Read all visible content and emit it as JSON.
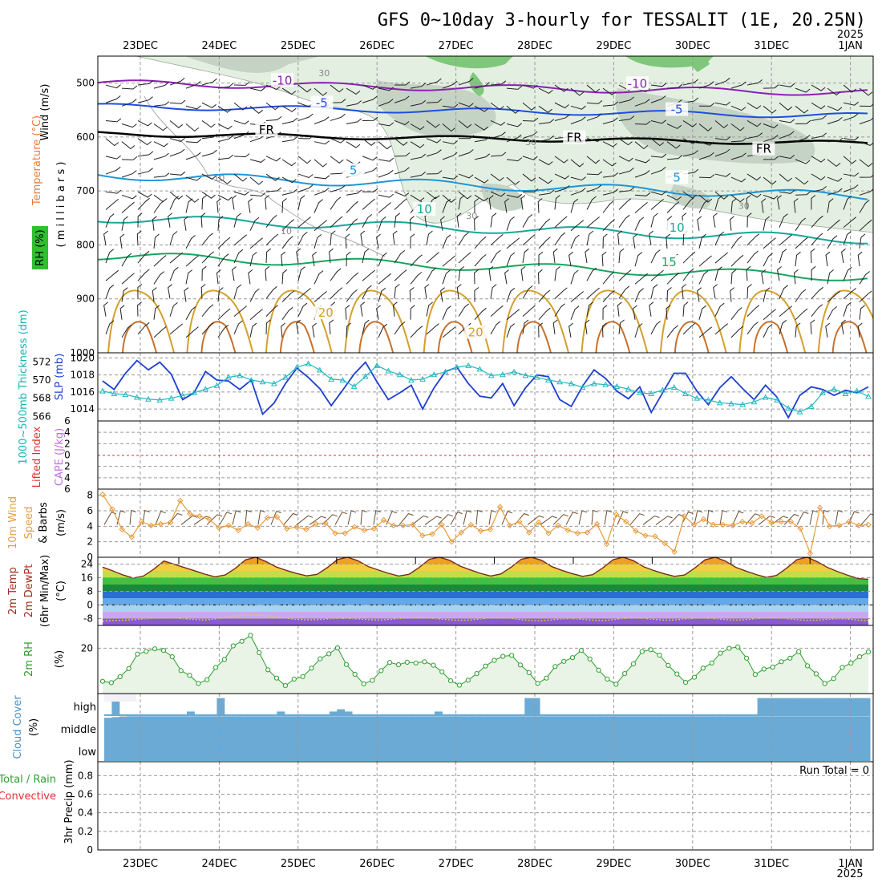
{
  "chart_data": [
    {
      "type": "line",
      "panel": "upper-air",
      "title": "GFS 0~10day 3-hourly for TESSALIT (1E, 20.25N)",
      "year_label": "2025",
      "date_labels": [
        "23DEC",
        "24DEC",
        "25DEC",
        "26DEC",
        "27DEC",
        "28DEC",
        "29DEC",
        "30DEC",
        "31DEC",
        "1JAN"
      ],
      "ylabel_rh": "RH (%)",
      "ylabel_temperature": "Temperature (°C)",
      "ylabel_wind": "Wind (m/s)",
      "ylabel_pressure": "( m i l l i b a r s )",
      "ylim": [
        1000,
        450
      ],
      "yticks": [
        "500",
        "600",
        "700",
        "800",
        "900",
        "1000"
      ],
      "isotherm_labels": [
        {
          "text": "-10",
          "day": 1.8,
          "p": 495,
          "color": "#8c1fb4"
        },
        {
          "text": "-10",
          "day": 6.3,
          "p": 501,
          "color": "#8c1fb4"
        },
        {
          "text": "-5",
          "day": 2.3,
          "p": 537,
          "color": "#1f4de0"
        },
        {
          "text": "-5",
          "day": 6.8,
          "p": 549,
          "color": "#1f4de0"
        },
        {
          "text": "FR",
          "day": 1.6,
          "p": 587,
          "color": "#000000"
        },
        {
          "text": "FR",
          "day": 5.5,
          "p": 601,
          "color": "#000000"
        },
        {
          "text": "FR",
          "day": 7.9,
          "p": 622,
          "color": "#000000"
        },
        {
          "text": "5",
          "day": 2.7,
          "p": 662,
          "color": "#1e96d8"
        },
        {
          "text": "5",
          "day": 6.8,
          "p": 675,
          "color": "#1e96d8"
        },
        {
          "text": "10",
          "day": 3.6,
          "p": 734,
          "color": "#17a89a"
        },
        {
          "text": "10",
          "day": 6.8,
          "p": 768,
          "color": "#17a89a"
        },
        {
          "text": "15",
          "day": 6.7,
          "p": 832,
          "color": "#17a55e"
        },
        {
          "text": "20",
          "day": 2.35,
          "p": 926,
          "color": "#d3a02a"
        },
        {
          "text": "20",
          "day": 4.25,
          "p": 962,
          "color": "#d3a02a"
        }
      ],
      "rh_labels": [
        {
          "text": "30",
          "day": 2.33,
          "p": 487
        },
        {
          "text": "30",
          "day": 4.95,
          "p": 615
        },
        {
          "text": "30",
          "day": 4.2,
          "p": 752
        },
        {
          "text": "30",
          "day": 7.65,
          "p": 733
        },
        {
          "text": "10",
          "day": 1.0,
          "p": 682
        },
        {
          "text": "10",
          "day": 1.85,
          "p": 780
        }
      ]
    },
    {
      "type": "line",
      "panel": "thickness-slp",
      "ylabel_thickness": "1000~500mb Thickness (dm)",
      "ylabel_slp": "SLP (mb)",
      "thickness_ticks": [
        "566",
        "568",
        "570",
        "572"
      ],
      "slp_ticks": [
        "1014",
        "1016",
        "1018",
        "1020"
      ],
      "thickness_ylim": [
        565.5,
        573
      ],
      "slp_ylim": [
        1012.6,
        1020.6
      ],
      "series": [
        {
          "name": "SLP (mb)",
          "values": [
            1017.3,
            1016.3,
            1018.2,
            1019.7,
            1018.6,
            1019.5,
            1018.1,
            1015.1,
            1015.9,
            1018.4,
            1017.4,
            1017.3,
            1016.3,
            1017.4,
            1013.4,
            1014.7,
            1017.0,
            1018.8,
            1017.7,
            1016.4,
            1014.4,
            1016.2,
            1018.1,
            1019.5,
            1017.2,
            1015.1,
            1015.9,
            1016.8,
            1014.0,
            1016.5,
            1018.4,
            1018.9,
            1017.0,
            1015.5,
            1015.3,
            1017.0,
            1014.4,
            1016.5,
            1018.0,
            1017.8,
            1015.1,
            1014.3,
            1016.7,
            1018.6,
            1017.6,
            1016.1,
            1015.2,
            1016.6,
            1013.6,
            1015.9,
            1018.2,
            1018.2,
            1016.1,
            1014.5,
            1016.5,
            1017.8,
            1016.4,
            1015.1,
            1016.8,
            1015.4,
            1013.0,
            1015.6,
            1016.6,
            1016.3,
            1015.6,
            1016.2,
            1015.9,
            1016.6
          ]
        },
        {
          "name": "1000~500mb Thickness (dm)",
          "values": [
            568.8,
            568.5,
            568.4,
            568.1,
            567.9,
            567.8,
            568.0,
            568.3,
            568.6,
            569.0,
            569.4,
            570.3,
            570.5,
            570.0,
            569.8,
            569.6,
            570.3,
            571.4,
            571.8,
            571.1,
            570.1,
            570.0,
            569.3,
            570.4,
            571.6,
            571.0,
            570.6,
            570.0,
            570.1,
            570.6,
            570.9,
            571.4,
            571.6,
            571.2,
            570.5,
            570.6,
            570.9,
            570.5,
            570.3,
            570.0,
            569.8,
            569.6,
            569.2,
            569.6,
            569.5,
            569.3,
            569.0,
            568.6,
            568.5,
            568.9,
            569.2,
            568.5,
            568.0,
            567.8,
            567.5,
            567.4,
            567.3,
            567.6,
            568.1,
            567.8,
            566.9,
            566.5,
            567.1,
            568.6,
            569.0,
            568.5,
            568.8,
            568.2
          ]
        }
      ]
    },
    {
      "type": "line",
      "panel": "cape-li",
      "ylabel_li": "Lifted Index",
      "ylabel_cape": "CAPE (J/kg)",
      "yticks": [
        "6",
        "4",
        "2",
        "0",
        "2",
        "4",
        "6"
      ],
      "ylim": [
        6,
        -6
      ],
      "series": [
        {
          "name": "Lifted Index",
          "values": []
        }
      ]
    },
    {
      "type": "line",
      "panel": "10m-wind",
      "ylabel": "10m Wind Speed & Barbs (m/s)",
      "ylabel_wind": "10m Wind",
      "ylabel_speed": "Speed",
      "ylabel_barbs": "& Barbs",
      "ylabel_units": "(m/s)",
      "yticks": [
        "0",
        "2",
        "4",
        "6",
        "8"
      ],
      "ylim": [
        0,
        8.8
      ],
      "series": [
        {
          "name": "10m Wind Speed (m/s)",
          "values": [
            8.1,
            6.2,
            3.6,
            2.6,
            4.6,
            4.1,
            4.3,
            4.5,
            7.3,
            5.6,
            5.3,
            4.9,
            3.8,
            4.1,
            3.5,
            4.3,
            3.8,
            5.1,
            5.2,
            3.7,
            3.9,
            3.6,
            4.3,
            4.4,
            3.1,
            3.1,
            3.9,
            3.5,
            3.7,
            4.8,
            4.1,
            4.1,
            4.2,
            2.8,
            3.0,
            4.2,
            2.0,
            3.2,
            4.2,
            3.4,
            3.6,
            6.5,
            4.1,
            4.6,
            3.2,
            4.5,
            3.1,
            4.1,
            3.5,
            3.1,
            3.2,
            4.3,
            1.7,
            5.5,
            4.6,
            3.4,
            2.8,
            2.7,
            1.8,
            0.7,
            5.3,
            4.2,
            4.9,
            4.2,
            4.2,
            4.1,
            4.6,
            4.4,
            5.3,
            4.5,
            4.6,
            4.6,
            3.7,
            0.5,
            6.4,
            4.0,
            4.1,
            4.6,
            4.1,
            4.2
          ]
        }
      ]
    },
    {
      "type": "area",
      "panel": "2m-temp",
      "ylabel": "2m Temp 2m DewPt (6hr Min/Max) (°C)",
      "ylabel_temp": "2m Temp",
      "ylabel_dewpt": "2m DewPt",
      "ylabel_minmax": "(6hr Min/Max)",
      "ylabel_units": "(°C)",
      "yticks": [
        "24",
        "16",
        "8",
        "0",
        "-8"
      ],
      "ylim": [
        -12,
        28
      ],
      "series": [
        {
          "name": "2m Temp (°C)",
          "values": [
            22.2,
            20.0,
            17.6,
            15.8,
            17.0,
            21.0,
            25.8,
            23.9,
            22.0,
            20.1,
            18.1,
            16.5,
            17.6,
            21.5,
            26.5,
            28.0,
            25.5,
            22.3,
            20.3,
            18.5,
            17.1,
            18.0,
            21.9,
            26.7,
            28.4,
            26.0,
            22.6,
            20.5,
            18.6,
            17.0,
            18.0,
            22.0,
            26.8,
            28.4,
            26.2,
            22.8,
            20.6,
            18.6,
            17.0,
            18.2,
            22.1,
            26.8,
            28.4,
            26.2,
            22.5,
            20.3,
            18.4,
            16.8,
            17.8,
            21.8,
            26.6,
            28.2,
            26.0,
            22.4,
            20.2,
            18.3,
            16.8,
            17.6,
            21.7,
            26.5,
            28.0,
            25.8,
            22.1,
            19.9,
            17.9,
            16.2,
            17.3,
            21.6,
            26.6,
            28.4,
            25.4,
            22.0,
            19.6,
            17.4,
            15.5,
            15.1
          ]
        },
        {
          "name": "2m DewPt (°C)",
          "values": [
            -9.5,
            -9.2,
            -9.0,
            -8.6,
            -8.2,
            -7.8,
            -7.6,
            -7.7,
            -8.1,
            -8.5,
            -8.8,
            -8.3,
            -7.4,
            -6.6,
            -5.9,
            -5.8,
            -6.3,
            -7.1,
            -7.8,
            -8.4,
            -8.7,
            -8.6,
            -8.2,
            -7.9,
            -7.9,
            -8.2,
            -8.6,
            -8.8,
            -8.5,
            -8.0,
            -7.5,
            -7.4,
            -7.7,
            -8.2,
            -8.7,
            -9.0,
            -8.8,
            -8.2,
            -7.6,
            -7.4,
            -7.9,
            -8.6,
            -9.1,
            -9.2,
            -8.7,
            -8.2,
            -8.0,
            -8.4,
            -8.9,
            -9.1,
            -8.6,
            -7.9,
            -7.5,
            -7.8,
            -8.4,
            -8.9,
            -8.8,
            -8.2,
            -7.8,
            -7.7,
            -8.1,
            -8.6,
            -8.9,
            -8.6,
            -8.0,
            -7.5,
            -7.5,
            -8.0,
            -8.6,
            -9.0,
            -8.9,
            -8.4,
            -8.1,
            -8.3,
            -8.9,
            -9.2
          ]
        }
      ]
    },
    {
      "type": "line",
      "panel": "2m-rh",
      "ylabel": "2m RH (%)",
      "ylabel_rh": "2m RH",
      "ylabel_units": "(%)",
      "yticks": [
        "20"
      ],
      "ylim": [
        0,
        30
      ],
      "series": [
        {
          "name": "2m RH (%)",
          "values": [
            5.4,
            4.8,
            7.4,
            11.0,
            17.4,
            18.6,
            19.7,
            19.0,
            16.2,
            10.1,
            8.0,
            4.5,
            6.1,
            11.5,
            15.0,
            21.0,
            23.0,
            25.6,
            18.0,
            10.5,
            6.8,
            3.5,
            6.4,
            7.5,
            11.2,
            15.3,
            17.5,
            20.1,
            12.8,
            8.5,
            4.3,
            5.8,
            10.1,
            13.7,
            12.7,
            13.8,
            13.5,
            14.0,
            12.5,
            9.6,
            5.6,
            3.7,
            5.9,
            8.8,
            12.1,
            14.6,
            16.4,
            16.8,
            12.6,
            9.2,
            4.5,
            6.8,
            11.9,
            14.2,
            15.8,
            19.0,
            15.2,
            10.3,
            6.4,
            4.1,
            8.8,
            13.1,
            18.5,
            19.3,
            16.9,
            12.4,
            8.6,
            4.9,
            7.2,
            11.2,
            13.5,
            17.8,
            19.9,
            20.5,
            15.6,
            8.4,
            10.8,
            11.7,
            14.0,
            15.6,
            18.5,
            12.2,
            8.7,
            4.4,
            6.6,
            11.5,
            13.4,
            16.2,
            18.3
          ]
        }
      ]
    },
    {
      "type": "area",
      "panel": "cloud-cover",
      "ylabel": "Cloud Cover (%)",
      "ylabel_cloud": "Cloud Cover",
      "ylabel_units": "(%)",
      "layer_labels": [
        "high",
        "middle",
        "low"
      ],
      "series": [
        {
          "name": "high",
          "values": [
            8,
            80,
            8,
            8,
            8,
            8,
            8,
            8,
            8,
            8,
            8,
            20,
            8,
            8,
            8,
            80,
            8,
            8,
            8,
            8,
            8,
            8,
            8,
            20,
            8,
            8,
            8,
            8,
            8,
            8,
            20,
            30,
            20,
            8,
            8,
            8,
            8,
            8,
            8,
            8,
            8,
            8,
            8,
            8,
            20,
            8,
            8,
            8,
            8,
            8,
            8,
            8,
            8,
            8,
            8,
            8,
            80,
            80,
            8,
            8,
            8,
            8,
            8,
            8,
            8,
            8,
            8,
            8,
            8,
            8,
            8,
            8,
            8,
            8,
            8,
            8,
            8,
            8,
            8,
            8,
            8,
            8,
            8,
            8,
            8,
            8,
            8,
            80,
            80,
            80,
            80,
            80,
            80,
            80,
            80,
            80,
            80,
            80,
            80,
            80,
            80,
            80
          ]
        },
        {
          "name": "middle",
          "values": [
            92,
            95,
            98,
            99,
            99,
            99,
            99,
            99,
            99,
            99,
            99,
            99,
            99,
            99,
            99,
            99,
            99,
            99,
            99,
            99,
            99,
            99,
            99,
            99,
            99,
            99,
            99,
            99,
            99,
            99,
            99,
            99,
            99,
            99,
            99,
            99,
            99,
            99,
            99,
            99,
            99,
            99,
            99,
            99,
            99,
            99,
            99,
            99,
            99,
            99,
            99,
            99,
            99,
            99,
            99,
            99,
            99,
            99,
            99,
            99,
            99,
            99,
            99,
            99,
            99,
            99,
            99,
            99,
            99,
            99,
            99,
            99,
            99,
            99,
            99,
            99,
            99,
            99,
            99,
            99,
            99,
            99,
            99,
            99,
            99,
            99,
            99,
            99,
            99,
            99,
            99,
            99,
            99,
            99,
            99,
            99,
            99,
            99,
            99,
            99,
            99,
            99
          ]
        },
        {
          "name": "low",
          "values": [
            100,
            100,
            100,
            100,
            100,
            100,
            100,
            100,
            100,
            100,
            100,
            100,
            100,
            100,
            100,
            100,
            100,
            100,
            100,
            100,
            100,
            100,
            100,
            100,
            100,
            100,
            100,
            100,
            100,
            100,
            100,
            100,
            100,
            100,
            100,
            100,
            100,
            100,
            100,
            100,
            100,
            100,
            100,
            100,
            100,
            100,
            100,
            100,
            100,
            100,
            100,
            100,
            100,
            100,
            100,
            100,
            100,
            100,
            100,
            100,
            100,
            100,
            100,
            100,
            100,
            100,
            100,
            100,
            100,
            100,
            100,
            100,
            100,
            100,
            100,
            100,
            100,
            100,
            100,
            100,
            100,
            100,
            100,
            100,
            100,
            100,
            100,
            100,
            100,
            100,
            100,
            100,
            100,
            100,
            100,
            100,
            100,
            100,
            100,
            100,
            100,
            100
          ]
        }
      ]
    },
    {
      "type": "bar",
      "panel": "precip",
      "ylabel": "Total / Rain Convective 3hr Precip (mm)",
      "ylabel_total_rain": "Total / Rain",
      "ylabel_convective": "Convective",
      "ylabel_precip": "3hr Precip (mm)",
      "yticks": [
        "0",
        "0.2",
        "0.4",
        "0.6",
        "0.8"
      ],
      "ylim": [
        0,
        0.95
      ],
      "run_total": "Run Total = 0",
      "values": []
    }
  ]
}
